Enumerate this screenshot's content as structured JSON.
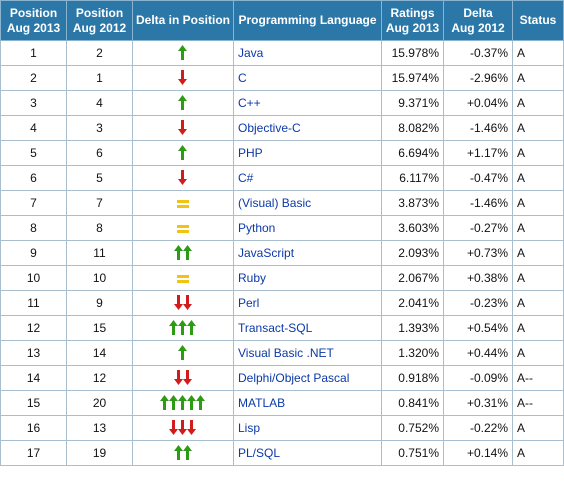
{
  "table": {
    "headers": {
      "pos2013": "Position\nAug 2013",
      "pos2012": "Position\nAug 2012",
      "delta_pos": "Delta in Position",
      "language": "Programming Language",
      "ratings": "Ratings\nAug 2013",
      "delta_rating": "Delta\nAug 2012",
      "status": "Status"
    },
    "colors": {
      "header_bg": "#2b78a8",
      "up_arrow": "#2e9b16",
      "down_arrow": "#d21b1b",
      "equal_sign": "#f1c40f",
      "link": "#0b39a8"
    },
    "rows": [
      {
        "pos2013": "1",
        "pos2012": "2",
        "delta": {
          "dir": "up",
          "count": 1
        },
        "language": "Java",
        "rating": "15.978%",
        "delta_rating": "-0.37%",
        "status": "A"
      },
      {
        "pos2013": "2",
        "pos2012": "1",
        "delta": {
          "dir": "down",
          "count": 1
        },
        "language": "C",
        "rating": "15.974%",
        "delta_rating": "-2.96%",
        "status": "A"
      },
      {
        "pos2013": "3",
        "pos2012": "4",
        "delta": {
          "dir": "up",
          "count": 1
        },
        "language": "C++",
        "rating": "9.371%",
        "delta_rating": "+0.04%",
        "status": "A"
      },
      {
        "pos2013": "4",
        "pos2012": "3",
        "delta": {
          "dir": "down",
          "count": 1
        },
        "language": "Objective-C",
        "rating": "8.082%",
        "delta_rating": "-1.46%",
        "status": "A"
      },
      {
        "pos2013": "5",
        "pos2012": "6",
        "delta": {
          "dir": "up",
          "count": 1
        },
        "language": "PHP",
        "rating": "6.694%",
        "delta_rating": "+1.17%",
        "status": "A"
      },
      {
        "pos2013": "6",
        "pos2012": "5",
        "delta": {
          "dir": "down",
          "count": 1
        },
        "language": "C#",
        "rating": "6.117%",
        "delta_rating": "-0.47%",
        "status": "A"
      },
      {
        "pos2013": "7",
        "pos2012": "7",
        "delta": {
          "dir": "same",
          "count": 0
        },
        "language": "(Visual) Basic",
        "rating": "3.873%",
        "delta_rating": "-1.46%",
        "status": "A"
      },
      {
        "pos2013": "8",
        "pos2012": "8",
        "delta": {
          "dir": "same",
          "count": 0
        },
        "language": "Python",
        "rating": "3.603%",
        "delta_rating": "-0.27%",
        "status": "A"
      },
      {
        "pos2013": "9",
        "pos2012": "11",
        "delta": {
          "dir": "up",
          "count": 2
        },
        "language": "JavaScript",
        "rating": "2.093%",
        "delta_rating": "+0.73%",
        "status": "A"
      },
      {
        "pos2013": "10",
        "pos2012": "10",
        "delta": {
          "dir": "same",
          "count": 0
        },
        "language": "Ruby",
        "rating": "2.067%",
        "delta_rating": "+0.38%",
        "status": "A"
      },
      {
        "pos2013": "11",
        "pos2012": "9",
        "delta": {
          "dir": "down",
          "count": 2
        },
        "language": "Perl",
        "rating": "2.041%",
        "delta_rating": "-0.23%",
        "status": "A"
      },
      {
        "pos2013": "12",
        "pos2012": "15",
        "delta": {
          "dir": "up",
          "count": 3
        },
        "language": "Transact-SQL",
        "rating": "1.393%",
        "delta_rating": "+0.54%",
        "status": "A"
      },
      {
        "pos2013": "13",
        "pos2012": "14",
        "delta": {
          "dir": "up",
          "count": 1
        },
        "language": "Visual Basic .NET",
        "rating": "1.320%",
        "delta_rating": "+0.44%",
        "status": "A"
      },
      {
        "pos2013": "14",
        "pos2012": "12",
        "delta": {
          "dir": "down",
          "count": 2
        },
        "language": "Delphi/Object Pascal",
        "rating": "0.918%",
        "delta_rating": "-0.09%",
        "status": "A--"
      },
      {
        "pos2013": "15",
        "pos2012": "20",
        "delta": {
          "dir": "up",
          "count": 5
        },
        "language": "MATLAB",
        "rating": "0.841%",
        "delta_rating": "+0.31%",
        "status": "A--"
      },
      {
        "pos2013": "16",
        "pos2012": "13",
        "delta": {
          "dir": "down",
          "count": 3
        },
        "language": "Lisp",
        "rating": "0.752%",
        "delta_rating": "-0.22%",
        "status": "A"
      },
      {
        "pos2013": "17",
        "pos2012": "19",
        "delta": {
          "dir": "up",
          "count": 2
        },
        "language": "PL/SQL",
        "rating": "0.751%",
        "delta_rating": "+0.14%",
        "status": "A"
      }
    ]
  }
}
